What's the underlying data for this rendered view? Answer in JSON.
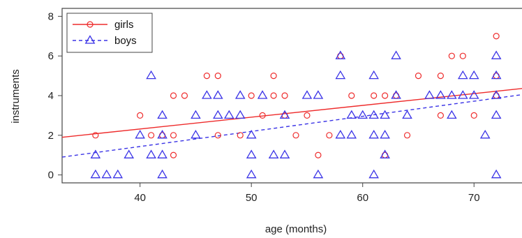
{
  "chart_data": {
    "type": "scatter",
    "title": "",
    "xlabel": "age (months)",
    "ylabel": "instruments",
    "xlim": [
      33,
      75
    ],
    "ylim": [
      -0.4,
      8.4
    ],
    "xticks": [
      40,
      50,
      60,
      70
    ],
    "yticks": [
      0,
      2,
      4,
      6,
      8
    ],
    "grid": false,
    "legend": "top-left",
    "series": [
      {
        "name": "girls",
        "marker": "circle",
        "color": "#ee2b2b",
        "line_style": "solid",
        "trend": [
          [
            33,
            1.9
          ],
          [
            75,
            4.4
          ]
        ],
        "points": [
          [
            36,
            2
          ],
          [
            40,
            3
          ],
          [
            41,
            2
          ],
          [
            42,
            2
          ],
          [
            43,
            4
          ],
          [
            43,
            2
          ],
          [
            43,
            1
          ],
          [
            44,
            4
          ],
          [
            46,
            5
          ],
          [
            47,
            5
          ],
          [
            47,
            2
          ],
          [
            49,
            2
          ],
          [
            50,
            4
          ],
          [
            51,
            3
          ],
          [
            52,
            5
          ],
          [
            52,
            4
          ],
          [
            53,
            4
          ],
          [
            53,
            3
          ],
          [
            54,
            2
          ],
          [
            55,
            3
          ],
          [
            56,
            1
          ],
          [
            57,
            2
          ],
          [
            58,
            6
          ],
          [
            59,
            4
          ],
          [
            61,
            4
          ],
          [
            62,
            4
          ],
          [
            62,
            1
          ],
          [
            63,
            4
          ],
          [
            64,
            2
          ],
          [
            65,
            5
          ],
          [
            67,
            5
          ],
          [
            67,
            3
          ],
          [
            68,
            6
          ],
          [
            69,
            6
          ],
          [
            70,
            3
          ],
          [
            72,
            7
          ],
          [
            72,
            5
          ],
          [
            72,
            4
          ]
        ]
      },
      {
        "name": "boys",
        "marker": "triangle",
        "color": "#3a33e6",
        "line_style": "dashed",
        "trend": [
          [
            33,
            0.9
          ],
          [
            75,
            4.1
          ]
        ],
        "points": [
          [
            36,
            1
          ],
          [
            36,
            0
          ],
          [
            37,
            0
          ],
          [
            38,
            0
          ],
          [
            39,
            1
          ],
          [
            40,
            2
          ],
          [
            41,
            5
          ],
          [
            41,
            1
          ],
          [
            42,
            3
          ],
          [
            42,
            2
          ],
          [
            42,
            1
          ],
          [
            42,
            0
          ],
          [
            45,
            3
          ],
          [
            45,
            2
          ],
          [
            46,
            4
          ],
          [
            47,
            4
          ],
          [
            47,
            3
          ],
          [
            48,
            3
          ],
          [
            49,
            3
          ],
          [
            49,
            4
          ],
          [
            50,
            2
          ],
          [
            50,
            1
          ],
          [
            50,
            0
          ],
          [
            51,
            4
          ],
          [
            52,
            1
          ],
          [
            53,
            1
          ],
          [
            53,
            3
          ],
          [
            55,
            4
          ],
          [
            56,
            4
          ],
          [
            56,
            0
          ],
          [
            58,
            6
          ],
          [
            58,
            5
          ],
          [
            58,
            2
          ],
          [
            59,
            2
          ],
          [
            59,
            3
          ],
          [
            60,
            3
          ],
          [
            61,
            5
          ],
          [
            61,
            3
          ],
          [
            61,
            2
          ],
          [
            61,
            0
          ],
          [
            62,
            3
          ],
          [
            62,
            2
          ],
          [
            62,
            1
          ],
          [
            63,
            4
          ],
          [
            63,
            6
          ],
          [
            64,
            3
          ],
          [
            66,
            4
          ],
          [
            67,
            4
          ],
          [
            68,
            4
          ],
          [
            68,
            3
          ],
          [
            69,
            5
          ],
          [
            69,
            4
          ],
          [
            70,
            5
          ],
          [
            70,
            4
          ],
          [
            71,
            2
          ],
          [
            72,
            6
          ],
          [
            72,
            5
          ],
          [
            72,
            4
          ],
          [
            72,
            3
          ],
          [
            72,
            0
          ]
        ]
      }
    ]
  }
}
